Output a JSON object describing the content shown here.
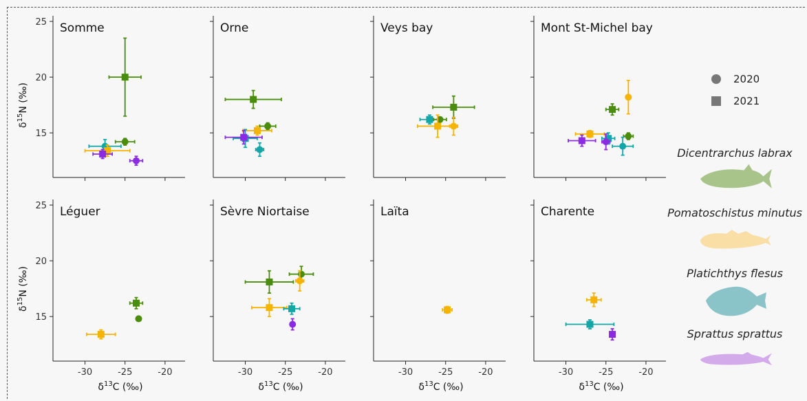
{
  "colors": {
    "Dicentrarchus labrax": "#4a8c0c",
    "Pomatoschistus minutus": "#f5b400",
    "Platichthys flesus": "#12a6a6",
    "Sprattus sprattus": "#8a2be2"
  },
  "silhouette_colors": {
    "Dicentrarchus labrax": "#a8c48a",
    "Pomatoschistus minutus": "#f9dea6",
    "Platichthys flesus": "#8ac3c8",
    "Sprattus sprattus": "#d3aaea"
  },
  "legend": {
    "years": [
      {
        "label": "2020",
        "shape": "circle"
      },
      {
        "label": "2021",
        "shape": "square"
      }
    ],
    "species": [
      "Dicentrarchus labrax",
      "Pomatoschistus minutus",
      "Platichthys flesus",
      "Sprattus sprattus"
    ]
  },
  "chart_data": {
    "type": "scatter",
    "xlabel_main": "δ",
    "xlabel_sup": "13",
    "xlabel_rest": "C  (‰)",
    "ylabel_main": "δ",
    "ylabel_sup": "15",
    "ylabel_rest": "N (‰)",
    "xlim": [
      -34,
      -17.5
    ],
    "ylim": [
      11,
      25.5
    ],
    "xticks": [
      -30,
      -25,
      -20
    ],
    "yticks": [
      15,
      20,
      25
    ],
    "panels": [
      {
        "title": "Somme",
        "points": [
          {
            "species": "Dicentrarchus labrax",
            "year": 2021,
            "x": -25,
            "y": 20,
            "xerr": 2,
            "yerr": 3.5
          },
          {
            "species": "Dicentrarchus labrax",
            "year": 2020,
            "x": -25,
            "y": 14.2,
            "xerr": 1.2,
            "yerr": 0.3
          },
          {
            "species": "Platichthys flesus",
            "year": 2020,
            "x": -27.5,
            "y": 13.8,
            "xerr": 2,
            "yerr": 0.6
          },
          {
            "species": "Pomatoschistus minutus",
            "year": 2021,
            "x": -27.2,
            "y": 13.4,
            "xerr": 2.8,
            "yerr": 0.5
          },
          {
            "species": "Sprattus sprattus",
            "year": 2021,
            "x": -27.8,
            "y": 13.1,
            "xerr": 1.2,
            "yerr": 0.4
          },
          {
            "species": "Sprattus sprattus",
            "year": 2020,
            "x": -23.6,
            "y": 12.5,
            "xerr": 0.8,
            "yerr": 0.4
          }
        ]
      },
      {
        "title": "Orne",
        "points": [
          {
            "species": "Dicentrarchus labrax",
            "year": 2021,
            "x": -29,
            "y": 18,
            "xerr": 3.5,
            "yerr": 0.8
          },
          {
            "species": "Dicentrarchus labrax",
            "year": 2020,
            "x": -27.2,
            "y": 15.6,
            "xerr": 1,
            "yerr": 0.3
          },
          {
            "species": "Pomatoschistus minutus",
            "year": 2021,
            "x": -28.5,
            "y": 15.2,
            "xerr": 1.8,
            "yerr": 0.4
          },
          {
            "species": "Platichthys flesus",
            "year": 2021,
            "x": -30,
            "y": 14.5,
            "xerr": 1.5,
            "yerr": 0.8
          },
          {
            "species": "Sprattus sprattus",
            "year": 2021,
            "x": -30.2,
            "y": 14.6,
            "xerr": 2.3,
            "yerr": 0.6
          },
          {
            "species": "Platichthys flesus",
            "year": 2020,
            "x": -28.2,
            "y": 13.5,
            "xerr": 0.5,
            "yerr": 0.6
          }
        ]
      },
      {
        "title": "Veys bay",
        "points": [
          {
            "species": "Dicentrarchus labrax",
            "year": 2021,
            "x": -24,
            "y": 17.3,
            "xerr": 2.6,
            "yerr": 1
          },
          {
            "species": "Platichthys flesus",
            "year": 2021,
            "x": -27,
            "y": 16.2,
            "xerr": 1.2,
            "yerr": 0.4
          },
          {
            "species": "Dicentrarchus labrax",
            "year": 2020,
            "x": -25.7,
            "y": 16.2,
            "xerr": 0.8,
            "yerr": 0.2
          },
          {
            "species": "Pomatoschistus minutus",
            "year": 2021,
            "x": -26,
            "y": 15.6,
            "xerr": 2.5,
            "yerr": 1
          },
          {
            "species": "Pomatoschistus minutus",
            "year": 2020,
            "x": -24,
            "y": 15.6,
            "xerr": 0.5,
            "yerr": 0.8
          }
        ]
      },
      {
        "title": "Mont St-Michel bay",
        "points": [
          {
            "species": "Pomatoschistus minutus",
            "year": 2020,
            "x": -22.2,
            "y": 18.2,
            "xerr": 0.3,
            "yerr": 1.5
          },
          {
            "species": "Dicentrarchus labrax",
            "year": 2021,
            "x": -24.2,
            "y": 17.1,
            "xerr": 0.8,
            "yerr": 0.5
          },
          {
            "species": "Pomatoschistus minutus",
            "year": 2021,
            "x": -27,
            "y": 14.9,
            "xerr": 1.8,
            "yerr": 0.3
          },
          {
            "species": "Dicentrarchus labrax",
            "year": 2020,
            "x": -22.2,
            "y": 14.7,
            "xerr": 0.6,
            "yerr": 0.3
          },
          {
            "species": "Platichthys flesus",
            "year": 2021,
            "x": -24.7,
            "y": 14.5,
            "xerr": 0.8,
            "yerr": 0.5
          },
          {
            "species": "Sprattus sprattus",
            "year": 2021,
            "x": -28,
            "y": 14.3,
            "xerr": 1.7,
            "yerr": 0.5
          },
          {
            "species": "Sprattus sprattus",
            "year": 2020,
            "x": -25,
            "y": 14.2,
            "xerr": 0.5,
            "yerr": 0.7
          },
          {
            "species": "Platichthys flesus",
            "year": 2020,
            "x": -22.9,
            "y": 13.8,
            "xerr": 1.3,
            "yerr": 0.8
          }
        ]
      },
      {
        "title": "Léguer",
        "points": [
          {
            "species": "Dicentrarchus labrax",
            "year": 2021,
            "x": -23.6,
            "y": 16.2,
            "xerr": 0.8,
            "yerr": 0.5
          },
          {
            "species": "Dicentrarchus labrax",
            "year": 2020,
            "x": -23.3,
            "y": 14.8,
            "xerr": 0.3,
            "yerr": 0.2
          },
          {
            "species": "Pomatoschistus minutus",
            "year": 2021,
            "x": -28,
            "y": 13.4,
            "xerr": 1.8,
            "yerr": 0.4
          }
        ]
      },
      {
        "title": "Sèvre Niortaise",
        "points": [
          {
            "species": "Dicentrarchus labrax",
            "year": 2020,
            "x": -23,
            "y": 18.8,
            "xerr": 1.5,
            "yerr": 0.7
          },
          {
            "species": "Pomatoschistus minutus",
            "year": 2020,
            "x": -23.2,
            "y": 18.2,
            "xerr": 0.5,
            "yerr": 0.9
          },
          {
            "species": "Dicentrarchus labrax",
            "year": 2021,
            "x": -27,
            "y": 18.1,
            "xerr": 3,
            "yerr": 1
          },
          {
            "species": "Pomatoschistus minutus",
            "year": 2021,
            "x": -27,
            "y": 15.8,
            "xerr": 2.2,
            "yerr": 0.8
          },
          {
            "species": "Platichthys flesus",
            "year": 2021,
            "x": -24.2,
            "y": 15.7,
            "xerr": 1,
            "yerr": 0.5
          },
          {
            "species": "Sprattus sprattus",
            "year": 2020,
            "x": -24.1,
            "y": 14.3,
            "xerr": 0.2,
            "yerr": 0.5
          }
        ]
      },
      {
        "title": "Laïta",
        "points": [
          {
            "species": "Pomatoschistus minutus",
            "year": 2021,
            "x": -24.8,
            "y": 15.6,
            "xerr": 0.6,
            "yerr": 0.3
          }
        ]
      },
      {
        "title": "Charente",
        "points": [
          {
            "species": "Pomatoschistus minutus",
            "year": 2021,
            "x": -26.5,
            "y": 16.5,
            "xerr": 0.9,
            "yerr": 0.6
          },
          {
            "species": "Platichthys flesus",
            "year": 2021,
            "x": -27,
            "y": 14.3,
            "xerr": 3,
            "yerr": 0.4
          },
          {
            "species": "Sprattus sprattus",
            "year": 2021,
            "x": -24.2,
            "y": 13.4,
            "xerr": 0.3,
            "yerr": 0.5
          }
        ]
      }
    ]
  }
}
